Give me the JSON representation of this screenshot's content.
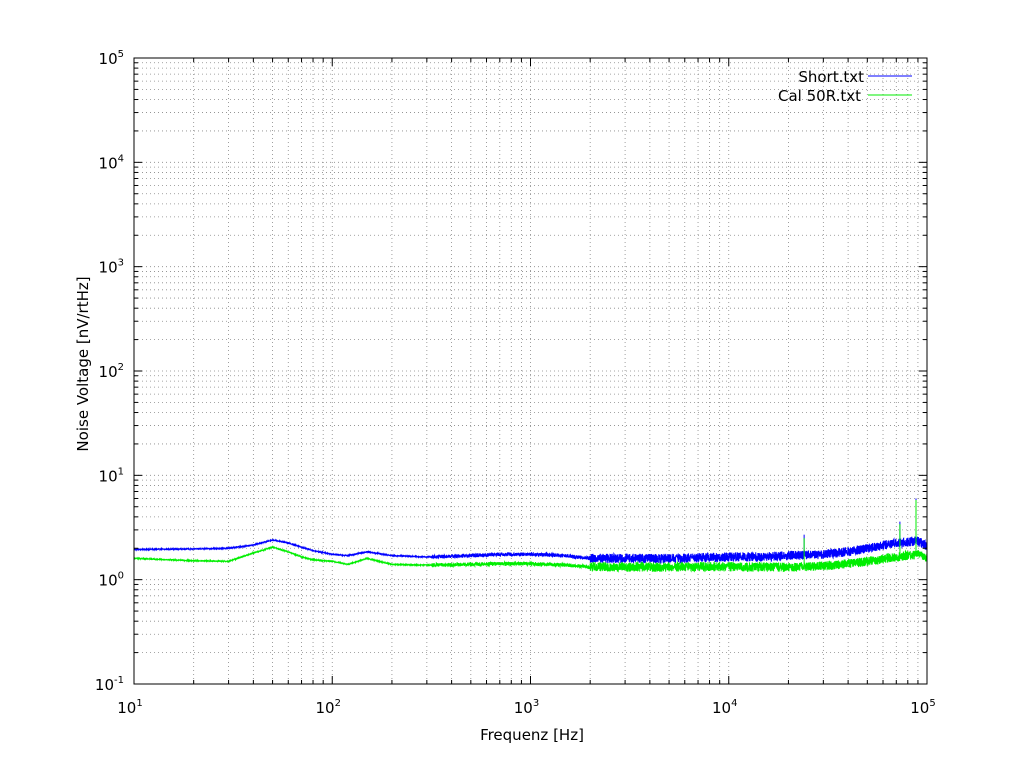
{
  "chart_data": {
    "type": "line",
    "title": "",
    "xlabel": "Frequenz [Hz]",
    "ylabel": "Noise Voltage [nV/rtHz]",
    "x_scale": "log",
    "y_scale": "log",
    "xlim": [
      10,
      100000
    ],
    "ylim": [
      0.1,
      100000
    ],
    "grid": true,
    "legend_position": "top-right",
    "x_ticks": [
      {
        "base": "10",
        "exp": "1",
        "value": 10
      },
      {
        "base": "10",
        "exp": "2",
        "value": 100
      },
      {
        "base": "10",
        "exp": "3",
        "value": 1000
      },
      {
        "base": "10",
        "exp": "4",
        "value": 10000
      },
      {
        "base": "10",
        "exp": "5",
        "value": 100000
      }
    ],
    "y_ticks": [
      {
        "base": "10",
        "exp": "-1",
        "value": 0.1
      },
      {
        "base": "10",
        "exp": "0",
        "value": 1
      },
      {
        "base": "10",
        "exp": "1",
        "value": 10
      },
      {
        "base": "10",
        "exp": "2",
        "value": 100
      },
      {
        "base": "10",
        "exp": "3",
        "value": 1000
      },
      {
        "base": "10",
        "exp": "4",
        "value": 10000
      },
      {
        "base": "10",
        "exp": "5",
        "value": 100000
      }
    ],
    "series": [
      {
        "name": "Short.txt",
        "color": "#0000ff",
        "x": [
          10,
          20,
          30,
          40,
          50,
          60,
          70,
          80,
          100,
          120,
          150,
          200,
          300,
          500,
          700,
          1000,
          1500,
          2000,
          3000,
          5000,
          7000,
          10000,
          15000,
          20000,
          30000,
          40000,
          50000,
          70000,
          90000,
          100000
        ],
        "y": [
          1.95,
          1.97,
          2.0,
          2.15,
          2.4,
          2.25,
          2.05,
          1.9,
          1.75,
          1.7,
          1.85,
          1.7,
          1.65,
          1.7,
          1.75,
          1.75,
          1.7,
          1.6,
          1.6,
          1.6,
          1.62,
          1.65,
          1.66,
          1.7,
          1.75,
          1.85,
          2.0,
          2.25,
          2.35,
          2.1
        ],
        "spikes": [
          {
            "x": 24000,
            "y": 2.7
          },
          {
            "x": 73000,
            "y": 3.6
          },
          {
            "x": 88000,
            "y": 6.0
          }
        ]
      },
      {
        "name": "Cal 50R.txt",
        "color": "#00ee00",
        "x": [
          10,
          20,
          30,
          40,
          50,
          60,
          70,
          80,
          100,
          120,
          150,
          200,
          300,
          500,
          700,
          1000,
          1500,
          2000,
          3000,
          5000,
          7000,
          10000,
          15000,
          20000,
          30000,
          40000,
          50000,
          70000,
          90000,
          100000
        ],
        "y": [
          1.6,
          1.52,
          1.5,
          1.8,
          2.05,
          1.85,
          1.65,
          1.55,
          1.5,
          1.4,
          1.6,
          1.4,
          1.38,
          1.4,
          1.42,
          1.42,
          1.38,
          1.33,
          1.32,
          1.32,
          1.33,
          1.33,
          1.32,
          1.32,
          1.35,
          1.42,
          1.5,
          1.65,
          1.75,
          1.6
        ],
        "spikes": [
          {
            "x": 24000,
            "y": 2.5
          },
          {
            "x": 73000,
            "y": 3.4
          },
          {
            "x": 88000,
            "y": 5.8
          }
        ]
      }
    ]
  }
}
